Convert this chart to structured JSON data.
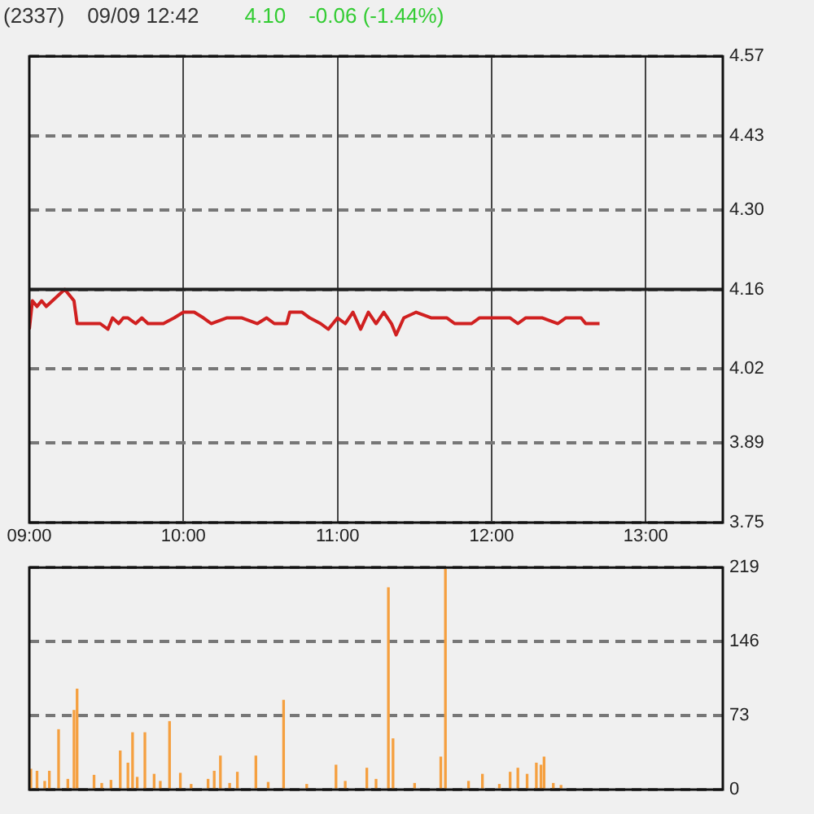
{
  "chart_data": [
    {
      "type": "line",
      "title": "(2337)",
      "subtitle": "09/09 12:42",
      "annotations": [
        "4.10",
        "-0.06 (-1.44%)"
      ],
      "xlim": [
        9,
        13.5
      ],
      "xticks": [
        {
          "value": 9,
          "label": "09:00"
        },
        {
          "value": 10,
          "label": "10:00"
        },
        {
          "value": 11,
          "label": "11:00"
        },
        {
          "value": 12,
          "label": "12:00"
        },
        {
          "value": 13,
          "label": "13:00"
        }
      ],
      "ylim": [
        3.75,
        4.57
      ],
      "yticks": [
        3.75,
        3.89,
        4.02,
        4.16,
        {
          "value": 4.3,
          "label": "4.30"
        },
        4.43,
        4.57
      ],
      "grid": true,
      "marker": "none",
      "ref_lines": [
        {
          "axis": "y",
          "value": 4.16,
          "color": "#202020"
        }
      ],
      "series": [
        {
          "color": "#d02020",
          "x": [
            9.0,
            9.02,
            9.05,
            9.08,
            9.11,
            9.15,
            9.19,
            9.23,
            9.26,
            9.29,
            9.31,
            9.36,
            9.46,
            9.51,
            9.54,
            9.58,
            9.61,
            9.64,
            9.69,
            9.73,
            9.77,
            9.87,
            9.94,
            10.0,
            10.07,
            10.13,
            10.18,
            10.28,
            10.38,
            10.48,
            10.54,
            10.59,
            10.67,
            10.69,
            10.77,
            10.82,
            10.89,
            10.94,
            11.0,
            11.05,
            11.1,
            11.15,
            11.2,
            11.25,
            11.3,
            11.35,
            11.38,
            11.43,
            11.51,
            11.61,
            11.71,
            11.76,
            11.87,
            11.92,
            12.02,
            12.12,
            12.17,
            12.22,
            12.33,
            12.43,
            12.48,
            12.58,
            12.61,
            12.7
          ],
          "values": [
            4.09,
            4.14,
            4.13,
            4.14,
            4.13,
            4.14,
            4.15,
            4.16,
            4.15,
            4.14,
            4.1,
            4.1,
            4.1,
            4.09,
            4.11,
            4.1,
            4.11,
            4.11,
            4.1,
            4.11,
            4.1,
            4.1,
            4.11,
            4.12,
            4.12,
            4.11,
            4.1,
            4.11,
            4.11,
            4.1,
            4.11,
            4.1,
            4.1,
            4.12,
            4.12,
            4.11,
            4.1,
            4.09,
            4.11,
            4.1,
            4.12,
            4.09,
            4.12,
            4.1,
            4.12,
            4.1,
            4.08,
            4.11,
            4.12,
            4.11,
            4.11,
            4.1,
            4.1,
            4.11,
            4.11,
            4.11,
            4.1,
            4.11,
            4.11,
            4.1,
            4.11,
            4.11,
            4.1,
            4.1
          ]
        }
      ]
    },
    {
      "type": "bar",
      "xlim": [
        9,
        13.5
      ],
      "ylim": [
        0,
        219
      ],
      "yticks": [
        0,
        73,
        146,
        219
      ],
      "grid": "y",
      "tick_labels": "y",
      "series": [
        {
          "color": "#f5a040",
          "x": [
            9.01,
            9.05,
            9.1,
            9.13,
            9.19,
            9.25,
            9.29,
            9.31,
            9.42,
            9.47,
            9.53,
            9.59,
            9.64,
            9.67,
            9.7,
            9.75,
            9.81,
            9.85,
            9.91,
            9.98,
            10.05,
            10.16,
            10.2,
            10.24,
            10.3,
            10.35,
            10.47,
            10.55,
            10.65,
            10.8,
            10.99,
            11.05,
            11.19,
            11.25,
            11.33,
            11.36,
            11.5,
            11.67,
            11.7,
            11.85,
            11.94,
            12.05,
            12.12,
            12.17,
            12.23,
            12.29,
            12.32,
            12.34,
            12.4,
            12.45
          ],
          "values": [
            20,
            18,
            8,
            18,
            59,
            10,
            78,
            99,
            14,
            6,
            9,
            38,
            26,
            56,
            12,
            56,
            15,
            8,
            67,
            16,
            5,
            10,
            18,
            33,
            6,
            17,
            33,
            7,
            88,
            5,
            24,
            8,
            21,
            10,
            199,
            50,
            6,
            32,
            217,
            8,
            15,
            5,
            17,
            21,
            15,
            26,
            24,
            32,
            6,
            4
          ]
        }
      ]
    }
  ]
}
